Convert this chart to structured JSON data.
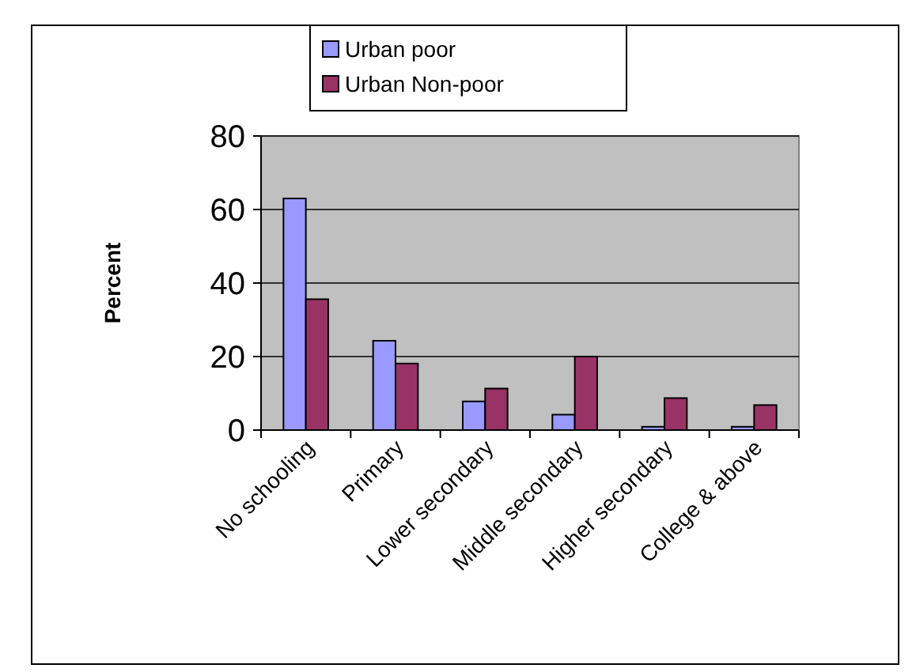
{
  "chart_data": {
    "type": "bar",
    "ylabel": "Percent",
    "categories": [
      "No schooling",
      "Primary",
      "Lower secondary",
      "Middle secondary",
      "Higher secondary",
      "College & above"
    ],
    "series": [
      {
        "name": "Urban poor",
        "color": "#9999ff",
        "values": [
          63,
          24.3,
          7.8,
          4.2,
          0.9,
          0.9
        ]
      },
      {
        "name": "Urban Non-poor",
        "color": "#993366",
        "values": [
          35.6,
          18.1,
          11.3,
          20,
          8.7,
          6.8
        ]
      }
    ],
    "ylim": [
      0,
      80
    ],
    "yticks": [
      0,
      20,
      40,
      60,
      80
    ],
    "grid": "y",
    "legend": "top"
  }
}
